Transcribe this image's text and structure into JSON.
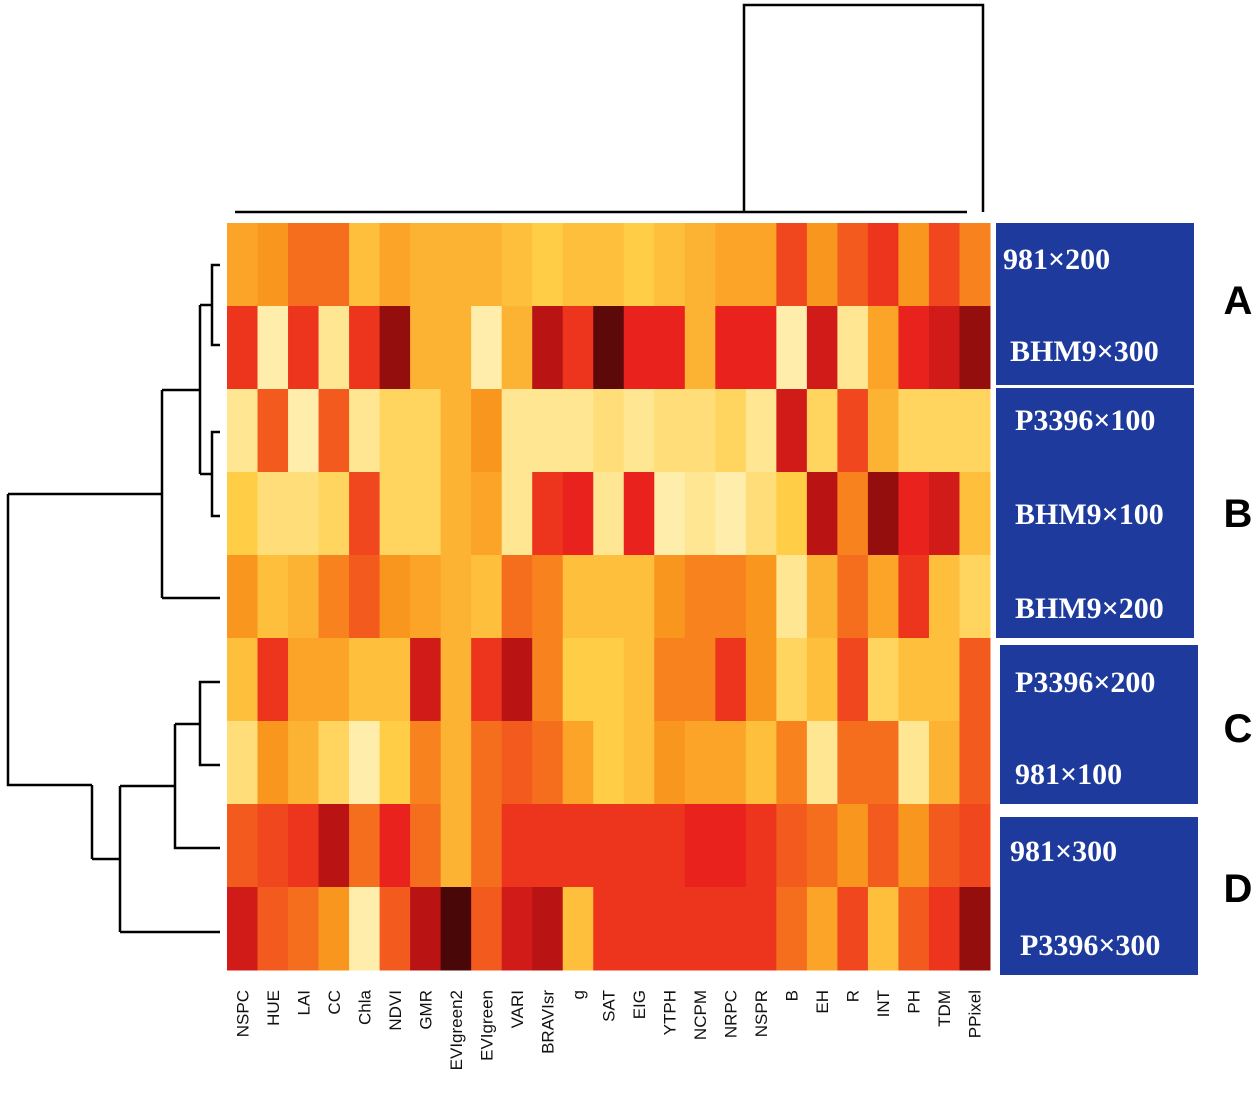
{
  "chart_data": {
    "type": "heatmap",
    "title": "",
    "xlabel": "",
    "ylabel": "",
    "columns": [
      "NSPC",
      "HUE",
      "LAI",
      "CC",
      "Chla",
      "NDVI",
      "GMR",
      "EVIgreen2",
      "EVIgreen",
      "VARI",
      "BRAVIsr",
      "g",
      "SAT",
      "EIG",
      "YTPH",
      "NCPM",
      "NRPC",
      "NSPR",
      "B",
      "EH",
      "R",
      "INT",
      "PH",
      "TDM",
      "PPixel"
    ],
    "rows": [
      "981×200",
      "BHM9×300",
      "P3396×100",
      "BHM9×100",
      "BHM9×200",
      "P3396×200",
      "981×100",
      "981×300",
      "P3396×300"
    ],
    "groups": [
      {
        "letter": "A",
        "rows": [
          "981×200",
          "BHM9×300"
        ]
      },
      {
        "letter": "B",
        "rows": [
          "P3396×100",
          "BHM9×100",
          "BHM9×200"
        ]
      },
      {
        "letter": "C",
        "rows": [
          "P3396×200",
          "981×100"
        ]
      },
      {
        "letter": "D",
        "rows": [
          "981×300",
          "P3396×300"
        ]
      }
    ],
    "value_scale": "0 = pale yellow (low) … 1 = dark red/black (high)",
    "values": [
      [
        0.4,
        0.45,
        0.55,
        0.55,
        0.3,
        0.4,
        0.35,
        0.35,
        0.35,
        0.3,
        0.25,
        0.3,
        0.3,
        0.25,
        0.3,
        0.35,
        0.4,
        0.4,
        0.65,
        0.45,
        0.6,
        0.7,
        0.45,
        0.65,
        0.5
      ],
      [
        0.7,
        0.05,
        0.7,
        0.1,
        0.7,
        0.9,
        0.35,
        0.35,
        0.05,
        0.35,
        0.85,
        0.7,
        0.95,
        0.75,
        0.75,
        0.35,
        0.75,
        0.75,
        0.05,
        0.8,
        0.1,
        0.4,
        0.75,
        0.8,
        0.9
      ],
      [
        0.1,
        0.6,
        0.05,
        0.6,
        0.1,
        0.2,
        0.2,
        0.35,
        0.45,
        0.1,
        0.1,
        0.1,
        0.15,
        0.1,
        0.15,
        0.15,
        0.2,
        0.1,
        0.8,
        0.2,
        0.65,
        0.35,
        0.2,
        0.2,
        0.2
      ],
      [
        0.25,
        0.15,
        0.15,
        0.2,
        0.65,
        0.2,
        0.2,
        0.35,
        0.4,
        0.1,
        0.7,
        0.75,
        0.1,
        0.75,
        0.05,
        0.1,
        0.05,
        0.15,
        0.25,
        0.85,
        0.5,
        0.9,
        0.75,
        0.8,
        0.3
      ],
      [
        0.45,
        0.3,
        0.35,
        0.5,
        0.6,
        0.45,
        0.4,
        0.35,
        0.3,
        0.55,
        0.5,
        0.3,
        0.3,
        0.3,
        0.45,
        0.5,
        0.5,
        0.45,
        0.1,
        0.35,
        0.55,
        0.4,
        0.7,
        0.3,
        0.2
      ],
      [
        0.3,
        0.7,
        0.4,
        0.4,
        0.3,
        0.3,
        0.8,
        0.35,
        0.7,
        0.85,
        0.5,
        0.25,
        0.25,
        0.3,
        0.5,
        0.5,
        0.7,
        0.45,
        0.2,
        0.3,
        0.65,
        0.2,
        0.3,
        0.3,
        0.6
      ],
      [
        0.15,
        0.45,
        0.35,
        0.2,
        0.05,
        0.25,
        0.5,
        0.35,
        0.55,
        0.6,
        0.55,
        0.4,
        0.25,
        0.3,
        0.45,
        0.4,
        0.4,
        0.3,
        0.5,
        0.1,
        0.55,
        0.55,
        0.1,
        0.35,
        0.6
      ],
      [
        0.6,
        0.65,
        0.7,
        0.85,
        0.55,
        0.75,
        0.55,
        0.35,
        0.55,
        0.7,
        0.7,
        0.7,
        0.7,
        0.7,
        0.7,
        0.75,
        0.75,
        0.7,
        0.6,
        0.55,
        0.45,
        0.6,
        0.45,
        0.6,
        0.65
      ],
      [
        0.8,
        0.6,
        0.55,
        0.45,
        0.05,
        0.6,
        0.85,
        0.97,
        0.6,
        0.8,
        0.85,
        0.3,
        0.7,
        0.7,
        0.7,
        0.7,
        0.7,
        0.7,
        0.55,
        0.4,
        0.65,
        0.3,
        0.6,
        0.7,
        0.9
      ]
    ]
  }
}
